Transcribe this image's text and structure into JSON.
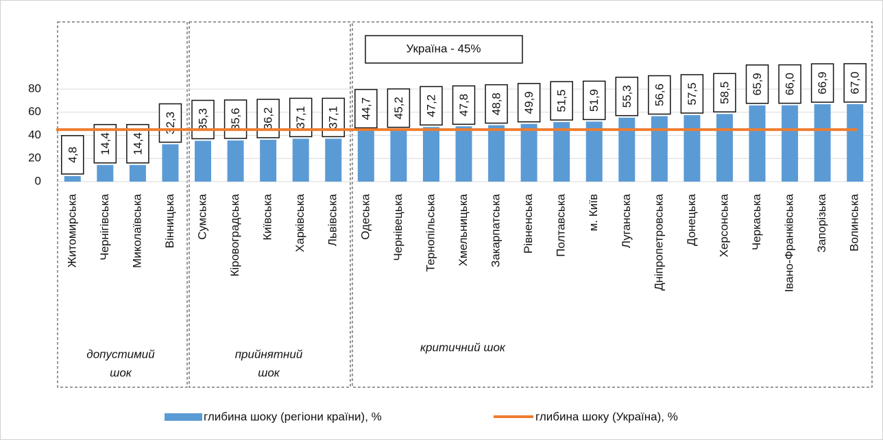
{
  "chart_data": {
    "type": "bar",
    "categories": [
      "Житомирська",
      "Чернігівська",
      "Миколаївська",
      "Вінницька",
      "Сумська",
      "Кіровоградська",
      "Київська",
      "Харківська",
      "Львівська",
      "Одеська",
      "Чернівецька",
      "Тернопільська",
      "Хмельницька",
      "Закарпатська",
      "Рівненська",
      "Полтавська",
      "м. Київ",
      "Луганська",
      "Дніпропетровська",
      "Донецька",
      "Херсонська",
      "Черкаська",
      "Івано-Франківська",
      "Запорізька",
      "Волинська"
    ],
    "series": [
      {
        "name": "глибина шоку (регіони країни), %",
        "color": "#5b9bd5",
        "values": [
          4.8,
          14.4,
          14.4,
          32.3,
          35.3,
          35.6,
          36.2,
          37.1,
          37.1,
          44.7,
          45.2,
          47.2,
          47.8,
          48.8,
          49.9,
          51.5,
          51.9,
          55.3,
          56.6,
          57.5,
          58.5,
          65.9,
          66.0,
          66.9,
          67.0
        ],
        "value_labels": [
          "4,8",
          "14,4",
          "14,4",
          "32,3",
          "35,3",
          "35,6",
          "36,2",
          "37,1",
          "37,1",
          "44,7",
          "45,2",
          "47,2",
          "47,8",
          "48,8",
          "49,9",
          "51,5",
          "51,9",
          "55,3",
          "56,6",
          "57,5",
          "58,5",
          "65,9",
          "66,0",
          "66,9",
          "67,0"
        ]
      }
    ],
    "reference_line": {
      "name": "глибина шоку (Україна), %",
      "value": 45,
      "color": "#ed7d31"
    },
    "annotation": "Україна - 45%",
    "groups": [
      [
        "допустимий",
        "шок"
      ],
      [
        "прийнятний",
        "шок"
      ],
      [
        "критичний шок"
      ]
    ],
    "ylim": [
      0,
      80
    ],
    "yticks": [
      0,
      20,
      40,
      60,
      80
    ],
    "grid": true
  }
}
